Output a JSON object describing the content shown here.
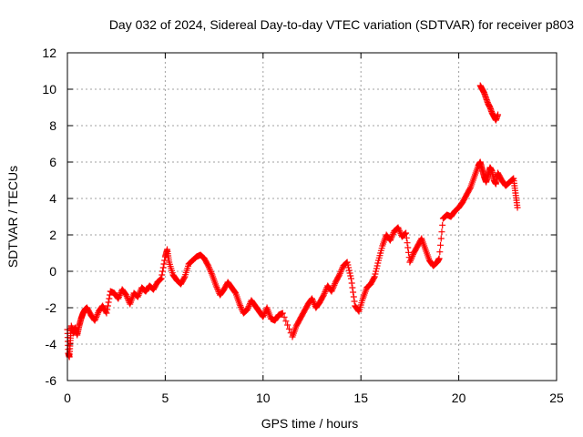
{
  "chart_data": {
    "type": "scatter",
    "title": "Day 032 of 2024, Sidereal Day-to-day VTEC variation (SDTVAR) for receiver p803",
    "xlabel": "GPS time / hours",
    "ylabel": "SDTVAR / TECUs",
    "xlim": [
      0,
      25
    ],
    "ylim": [
      -6,
      12
    ],
    "xticks": [
      "0",
      "5",
      "10",
      "15",
      "20",
      "25"
    ],
    "yticks": [
      "-6",
      "-4",
      "-2",
      "0",
      "2",
      "4",
      "6",
      "8",
      "10",
      "12"
    ],
    "grid": true,
    "marker": "+",
    "color": "#ff0000",
    "series": [
      {
        "name": "SDTVAR",
        "x": [
          0.0,
          0.05,
          0.1,
          0.15,
          0.2,
          0.3,
          0.4,
          0.5,
          0.6,
          0.7,
          0.8,
          0.9,
          1.0,
          1.2,
          1.4,
          1.6,
          1.8,
          2.0,
          2.2,
          2.4,
          2.6,
          2.8,
          3.0,
          3.2,
          3.4,
          3.6,
          3.8,
          4.0,
          4.2,
          4.4,
          4.6,
          4.8,
          5.0,
          5.1,
          5.2,
          5.4,
          5.6,
          5.8,
          6.0,
          6.2,
          6.4,
          6.6,
          6.8,
          7.0,
          7.2,
          7.4,
          7.6,
          7.8,
          8.0,
          8.2,
          8.4,
          8.6,
          8.8,
          9.0,
          9.2,
          9.4,
          9.6,
          9.8,
          10.0,
          10.2,
          10.4,
          10.6,
          10.8,
          11.0,
          11.5,
          11.7,
          11.9,
          12.1,
          12.3,
          12.5,
          12.7,
          12.9,
          13.1,
          13.3,
          13.5,
          13.7,
          13.9,
          14.1,
          14.3,
          14.5,
          14.7,
          14.9,
          15.1,
          15.3,
          15.5,
          15.7,
          15.9,
          16.1,
          16.3,
          16.5,
          16.7,
          16.9,
          17.1,
          17.3,
          17.5,
          17.7,
          17.9,
          18.1,
          18.3,
          18.5,
          18.7,
          18.9,
          19.0,
          19.2,
          19.4,
          19.6,
          19.8,
          20.0,
          20.2,
          20.4,
          20.6,
          20.8,
          21.0,
          21.1,
          21.2,
          21.3,
          21.4,
          21.5,
          21.6,
          21.7,
          21.8,
          21.9,
          22.0,
          22.2,
          22.4,
          22.6,
          22.8,
          22.9,
          23.0
        ],
        "y": [
          -3.2,
          -4.5,
          -4.7,
          -3.8,
          -3.0,
          -3.4,
          -3.1,
          -3.5,
          -3.0,
          -2.6,
          -2.3,
          -2.1,
          -2.0,
          -2.4,
          -2.7,
          -2.2,
          -1.9,
          -2.3,
          -1.1,
          -1.2,
          -1.5,
          -1.0,
          -1.3,
          -1.8,
          -1.2,
          -1.4,
          -0.9,
          -1.1,
          -0.8,
          -1.0,
          -0.6,
          -0.4,
          0.8,
          1.2,
          0.5,
          -0.2,
          -0.5,
          -0.7,
          -0.3,
          0.4,
          0.6,
          0.8,
          0.9,
          0.7,
          0.3,
          -0.2,
          -0.8,
          -1.3,
          -1.0,
          -0.6,
          -0.9,
          -1.2,
          -1.8,
          -2.3,
          -2.1,
          -1.6,
          -1.9,
          -2.2,
          -2.5,
          -2.0,
          -2.6,
          -2.7,
          -2.4,
          -2.3,
          -3.6,
          -3.0,
          -2.6,
          -2.2,
          -1.8,
          -1.5,
          -2.0,
          -1.7,
          -1.3,
          -0.8,
          -1.1,
          -0.6,
          -0.2,
          0.3,
          0.5,
          -0.4,
          -1.9,
          -2.2,
          -1.5,
          -0.9,
          -0.7,
          -0.3,
          0.6,
          1.4,
          2.0,
          1.7,
          2.2,
          2.4,
          1.9,
          2.1,
          0.5,
          1.0,
          1.4,
          1.8,
          1.2,
          0.6,
          0.3,
          0.5,
          0.7,
          2.9,
          3.1,
          3.0,
          3.3,
          3.5,
          3.8,
          4.2,
          4.6,
          5.2,
          5.8,
          6.0,
          5.6,
          5.2,
          4.9,
          5.3,
          5.7,
          5.5,
          5.0,
          4.8,
          5.4,
          5.0,
          4.7,
          4.9,
          5.1,
          4.3,
          3.5
        ],
        "cluster_x": [
          21.1,
          21.2,
          21.3,
          21.4,
          21.5,
          21.6,
          21.7,
          21.8,
          21.9,
          22.0
        ],
        "cluster_y": [
          10.2,
          10.0,
          9.8,
          9.5,
          9.2,
          9.0,
          8.7,
          8.5,
          8.3,
          8.6
        ]
      }
    ]
  }
}
